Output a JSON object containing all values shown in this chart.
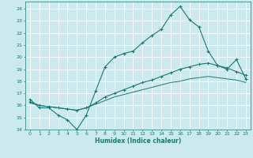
{
  "xlabel": "Humidex (Indice chaleur)",
  "bg_color": "#cce9ed",
  "grid_color": "#ffffff",
  "line_color": "#1a7a6e",
  "xlim": [
    -0.5,
    23.5
  ],
  "ylim": [
    14,
    24.6
  ],
  "yticks": [
    14,
    15,
    16,
    17,
    18,
    19,
    20,
    21,
    22,
    23,
    24
  ],
  "xticks": [
    0,
    1,
    2,
    3,
    4,
    5,
    6,
    7,
    8,
    9,
    10,
    11,
    12,
    13,
    14,
    15,
    16,
    17,
    18,
    19,
    20,
    21,
    22,
    23
  ],
  "line1_x": [
    0,
    1,
    2,
    3,
    4,
    5,
    6,
    7,
    8,
    9,
    10,
    11,
    12,
    13,
    14,
    15,
    16,
    17,
    18,
    19,
    20,
    21,
    22,
    23
  ],
  "line1_y": [
    16.5,
    15.8,
    15.8,
    15.2,
    14.8,
    14.0,
    15.2,
    17.2,
    19.2,
    20.0,
    20.3,
    20.5,
    21.2,
    21.8,
    22.3,
    23.5,
    24.2,
    23.1,
    22.5,
    20.5,
    19.3,
    19.0,
    19.8,
    18.2
  ],
  "line2_x": [
    0,
    1,
    2,
    3,
    4,
    5,
    6,
    7,
    8,
    9,
    10,
    11,
    12,
    13,
    14,
    15,
    16,
    17,
    18,
    19,
    20,
    21,
    22,
    23
  ],
  "line2_y": [
    16.3,
    16.0,
    15.9,
    15.8,
    15.7,
    15.6,
    15.8,
    16.2,
    16.7,
    17.0,
    17.3,
    17.6,
    17.9,
    18.1,
    18.4,
    18.7,
    19.0,
    19.2,
    19.4,
    19.5,
    19.3,
    19.1,
    18.8,
    18.5
  ],
  "line3_x": [
    0,
    1,
    2,
    3,
    4,
    5,
    6,
    7,
    8,
    9,
    10,
    11,
    12,
    13,
    14,
    15,
    16,
    17,
    18,
    19,
    20,
    21,
    22,
    23
  ],
  "line3_y": [
    16.2,
    16.0,
    15.9,
    15.8,
    15.7,
    15.6,
    15.8,
    16.1,
    16.4,
    16.7,
    16.9,
    17.1,
    17.3,
    17.5,
    17.7,
    17.9,
    18.0,
    18.2,
    18.3,
    18.4,
    18.3,
    18.2,
    18.1,
    17.9
  ]
}
